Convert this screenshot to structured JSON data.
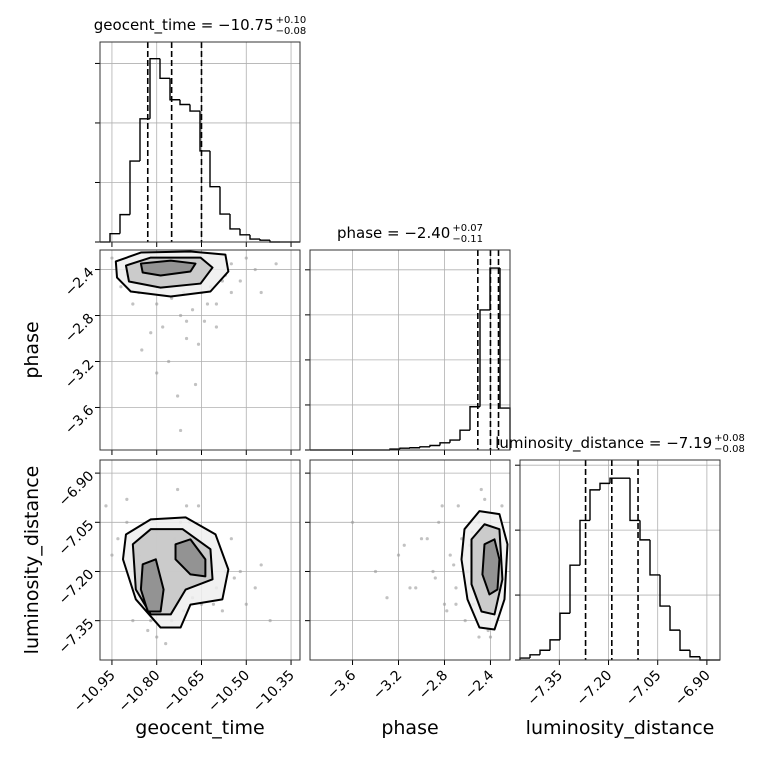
{
  "chart_data": [
    {
      "type": "histogram",
      "title": "geocent_time = −10.75",
      "title_upper": "+0.10",
      "title_lower": "−0.08",
      "color": "#000000",
      "grid": true,
      "bins": [
        -10.99,
        -10.9565,
        -10.923,
        -10.8895,
        -10.856,
        -10.8225,
        -10.789,
        -10.7555,
        -10.722,
        -10.6885,
        -10.655,
        -10.6215,
        -10.588,
        -10.5545,
        -10.521,
        -10.4875,
        -10.454,
        -10.4205,
        -10.387,
        -10.3535,
        -10.32
      ],
      "counts": [
        0,
        0.14,
        0.46,
        1.36,
        2.07,
        3.08,
        2.75,
        2.39,
        2.31,
        2.2,
        1.53,
        0.93,
        0.47,
        0.22,
        0.12,
        0.05,
        0.03,
        0,
        0,
        0
      ],
      "quantiles": [
        -10.83,
        -10.75,
        -10.65
      ],
      "xlim": [
        -10.99,
        -10.32
      ],
      "xticks": [
        -10.95,
        -10.8,
        -10.65,
        -10.5,
        -10.35
      ],
      "ylim": [
        0,
        3.36
      ],
      "yticks": [
        0,
        1,
        2,
        3
      ]
    },
    {
      "type": "scatter",
      "ylabel": "phase",
      "grid": true,
      "color": "#999999",
      "x": [
        -10.95,
        -10.9,
        -10.86,
        -10.83,
        -10.8,
        -10.78,
        -10.75,
        -10.72,
        -10.7,
        -10.68,
        -10.65,
        -10.62,
        -10.6,
        -10.57,
        -10.55,
        -10.52,
        -10.5,
        -10.47,
        -10.45,
        -10.4,
        -10.85,
        -10.8,
        -10.76,
        -10.73,
        -10.7,
        -10.66,
        -10.63,
        -10.78,
        -10.72,
        -10.69,
        -10.88,
        -10.82,
        -10.74,
        -10.6,
        -10.55,
        -10.67,
        -10.71,
        -10.64,
        -10.58,
        -10.92
      ],
      "y": [
        -2.3,
        -2.45,
        -2.6,
        -2.5,
        -2.7,
        -2.9,
        -2.65,
        -2.8,
        -3.0,
        -2.75,
        -2.6,
        -2.55,
        -2.9,
        -2.45,
        -2.35,
        -2.5,
        -2.3,
        -2.4,
        -2.6,
        -2.35,
        -3.1,
        -3.3,
        -3.2,
        -3.5,
        -2.85,
        -3.05,
        -2.7,
        -2.55,
        -3.8,
        -2.5,
        -2.7,
        -2.95,
        -2.4,
        -2.7,
        -2.6,
        -3.4,
        -2.6,
        -2.85,
        -2.5,
        -2.55
      ],
      "contours": [
        {
          "x": [
            -10.937,
            -10.853,
            -10.687,
            -10.57,
            -10.56,
            -10.62,
            -10.753,
            -10.887,
            -10.933
          ],
          "y": [
            -2.33,
            -2.252,
            -2.243,
            -2.27,
            -2.417,
            -2.591,
            -2.635,
            -2.591,
            -2.47
          ]
        },
        {
          "x": [
            -10.903,
            -10.82,
            -10.653,
            -10.613,
            -10.653,
            -10.787,
            -10.893
          ],
          "y": [
            -2.365,
            -2.296,
            -2.296,
            -2.383,
            -2.522,
            -2.557,
            -2.504
          ]
        },
        {
          "x": [
            -10.853,
            -10.753,
            -10.67,
            -10.687,
            -10.787,
            -10.847
          ],
          "y": [
            -2.348,
            -2.322,
            -2.348,
            -2.417,
            -2.452,
            -2.426
          ]
        }
      ],
      "xlim": [
        -10.99,
        -10.32
      ],
      "xticks": [
        -10.95,
        -10.8,
        -10.65,
        -10.5,
        -10.35
      ],
      "ylim": [
        -3.97,
        -2.23
      ],
      "yticks": [
        {
          "value": -2.4,
          "label": "−2.4"
        },
        {
          "value": -2.8,
          "label": "−2.8"
        },
        {
          "value": -3.2,
          "label": "−3.2"
        },
        {
          "value": -3.6,
          "label": "−3.6"
        }
      ]
    },
    {
      "type": "histogram",
      "title": "phase = −2.40",
      "title_upper": "+0.07",
      "title_lower": "−0.11",
      "color": "#000000",
      "grid": true,
      "bins": [
        -3.97,
        -3.883,
        -3.796,
        -3.709,
        -3.622,
        -3.535,
        -3.448,
        -3.361,
        -3.274,
        -3.187,
        -3.1,
        -3.013,
        -2.926,
        -2.839,
        -2.752,
        -2.665,
        -2.578,
        -2.491,
        -2.404,
        -2.317,
        -2.23
      ],
      "counts": [
        0,
        0,
        0,
        0,
        0,
        0,
        0,
        0,
        0.02,
        0.04,
        0.05,
        0.07,
        0.1,
        0.16,
        0.22,
        0.44,
        0.96,
        3.11,
        4.04,
        0.93
      ],
      "quantiles": [
        -2.51,
        -2.4,
        -2.33
      ],
      "xlim": [
        -3.97,
        -2.23
      ],
      "xticks": [
        -3.6,
        -3.2,
        -2.8,
        -2.4
      ],
      "ylim": [
        0,
        4.44
      ],
      "yticks": [
        0,
        1,
        2,
        3,
        4
      ]
    },
    {
      "type": "scatter",
      "xlabel": "geocent_time",
      "ylabel": "luminosity_distance",
      "grid": true,
      "color": "#999999",
      "x": [
        -10.97,
        -10.93,
        -10.9,
        -10.88,
        -10.85,
        -10.82,
        -10.8,
        -10.78,
        -10.75,
        -10.72,
        -10.7,
        -10.68,
        -10.65,
        -10.62,
        -10.6,
        -10.57,
        -10.55,
        -10.5,
        -10.47,
        -10.42,
        -10.9,
        -10.86,
        -10.83,
        -10.77,
        -10.74,
        -10.71,
        -10.66,
        -10.63,
        -10.58,
        -10.52,
        -10.95,
        -10.8,
        -10.76,
        -10.69,
        -10.61,
        -10.54,
        -10.45,
        -10.88,
        -10.73,
        -10.64
      ],
      "y": [
        -7.0,
        -7.1,
        -7.05,
        -7.25,
        -7.3,
        -7.35,
        -7.4,
        -7.2,
        -7.35,
        -7.05,
        -7.0,
        -7.28,
        -7.3,
        -7.15,
        -7.25,
        -7.2,
        -7.1,
        -7.3,
        -7.25,
        -7.35,
        -6.98,
        -7.15,
        -7.38,
        -7.42,
        -7.1,
        -7.32,
        -7.0,
        -7.2,
        -7.32,
        -7.2,
        -7.15,
        -7.08,
        -7.25,
        -7.05,
        -7.3,
        -7.22,
        -7.18,
        -7.35,
        -6.95,
        -7.12
      ],
      "contours": [
        {
          "x": [
            -10.903,
            -10.82,
            -10.703,
            -10.603,
            -10.56,
            -10.58,
            -10.687,
            -10.72,
            -10.787,
            -10.87,
            -10.913
          ],
          "y": [
            -7.087,
            -7.041,
            -7.035,
            -7.087,
            -7.194,
            -7.285,
            -7.301,
            -7.371,
            -7.371,
            -7.285,
            -7.163
          ]
        },
        {
          "x": [
            -10.88,
            -10.82,
            -10.713,
            -10.62,
            -10.613,
            -10.703,
            -10.753,
            -10.82,
            -10.87
          ],
          "y": [
            -7.117,
            -7.071,
            -7.071,
            -7.132,
            -7.224,
            -7.255,
            -7.331,
            -7.331,
            -7.255
          ]
        },
        {
          "x": [
            -10.847,
            -10.803,
            -10.777,
            -10.787,
            -10.83,
            -10.853
          ],
          "y": [
            -7.178,
            -7.163,
            -7.255,
            -7.322,
            -7.322,
            -7.255
          ]
        },
        {
          "x": [
            -10.737,
            -10.687,
            -10.637,
            -10.637,
            -10.687,
            -10.737
          ],
          "y": [
            -7.117,
            -7.102,
            -7.163,
            -7.215,
            -7.209,
            -7.163
          ]
        }
      ],
      "xlim": [
        -10.99,
        -10.32
      ],
      "xticks": [
        {
          "value": -10.95,
          "label": "−10.95"
        },
        {
          "value": -10.8,
          "label": "−10.80"
        },
        {
          "value": -10.65,
          "label": "−10.65"
        },
        {
          "value": -10.5,
          "label": "−10.50"
        },
        {
          "value": -10.35,
          "label": "−10.35"
        }
      ],
      "ylim": [
        -7.47,
        -6.86
      ],
      "yticks": [
        {
          "value": -6.9,
          "label": "−6.90"
        },
        {
          "value": -7.05,
          "label": "−7.05"
        },
        {
          "value": -7.2,
          "label": "−7.20"
        },
        {
          "value": -7.35,
          "label": "−7.35"
        }
      ]
    },
    {
      "type": "scatter",
      "xlabel": "phase",
      "grid": true,
      "color": "#999999",
      "x": [
        -2.3,
        -2.35,
        -2.4,
        -2.45,
        -2.5,
        -2.55,
        -2.6,
        -2.65,
        -2.7,
        -2.75,
        -2.8,
        -2.85,
        -2.9,
        -3.0,
        -3.1,
        -3.2,
        -3.4,
        -3.6,
        -2.42,
        -2.48,
        -2.52,
        -2.58,
        -2.62,
        -2.68,
        -2.72,
        -2.78,
        -2.95,
        -3.05,
        -2.38,
        -2.44,
        -2.5,
        -2.56,
        -2.64,
        -2.7,
        -2.82,
        -2.88,
        -3.15,
        -3.3,
        -2.33,
        -2.46
      ],
      "y": [
        -7.0,
        -7.35,
        -7.4,
        -6.98,
        -7.05,
        -7.3,
        -7.2,
        -7.1,
        -7.25,
        -7.15,
        -7.3,
        -7.05,
        -7.2,
        -7.1,
        -7.25,
        -7.15,
        -7.2,
        -7.05,
        -7.38,
        -6.95,
        -7.28,
        -7.12,
        -7.35,
        -7.0,
        -7.18,
        -7.32,
        -7.1,
        -7.25,
        -7.2,
        -7.22,
        -7.4,
        -7.08,
        -7.15,
        -7.3,
        -7.0,
        -7.22,
        -7.12,
        -7.28,
        -7.1,
        -7.15
      ],
      "contours": [
        {
          "x": [
            -2.626,
            -2.496,
            -2.322,
            -2.252,
            -2.278,
            -2.365,
            -2.496,
            -2.6,
            -2.652
          ],
          "y": [
            -7.071,
            -7.016,
            -7.025,
            -7.117,
            -7.285,
            -7.377,
            -7.371,
            -7.285,
            -7.163
          ]
        },
        {
          "x": [
            -2.565,
            -2.452,
            -2.322,
            -2.296,
            -2.365,
            -2.478,
            -2.565
          ],
          "y": [
            -7.102,
            -7.056,
            -7.071,
            -7.224,
            -7.331,
            -7.322,
            -7.239
          ]
        },
        {
          "x": [
            -2.452,
            -2.365,
            -2.322,
            -2.339,
            -2.409,
            -2.47
          ],
          "y": [
            -7.117,
            -7.102,
            -7.163,
            -7.255,
            -7.27,
            -7.209
          ]
        }
      ],
      "xlim": [
        -3.97,
        -2.23
      ],
      "xticks": [
        {
          "value": -3.6,
          "label": "−3.6"
        },
        {
          "value": -3.2,
          "label": "−3.2"
        },
        {
          "value": -2.8,
          "label": "−2.8"
        },
        {
          "value": -2.4,
          "label": "−2.4"
        }
      ],
      "ylim": [
        -7.47,
        -6.86
      ],
      "yticks": [
        -6.9,
        -7.05,
        -7.2,
        -7.35
      ]
    },
    {
      "type": "histogram",
      "xlabel": "luminosity_distance",
      "title": "luminosity_distance = −7.19",
      "title_upper": "+0.08",
      "title_lower": "−0.08",
      "color": "#000000",
      "grid": true,
      "bins": [
        -7.47,
        -7.4395,
        -7.409,
        -7.3785,
        -7.348,
        -7.3175,
        -7.287,
        -7.2565,
        -7.226,
        -7.1955,
        -7.165,
        -7.1345,
        -7.104,
        -7.0735,
        -7.043,
        -7.0125,
        -6.982,
        -6.9515,
        -6.921,
        -6.8905,
        -6.86
      ],
      "counts": [
        0.03,
        0.08,
        0.15,
        0.31,
        0.72,
        1.46,
        2.15,
        2.62,
        2.72,
        2.8,
        2.8,
        2.15,
        1.85,
        1.31,
        0.83,
        0.46,
        0.15,
        0.05,
        0,
        0
      ],
      "quantiles": [
        -7.27,
        -7.19,
        -7.11
      ],
      "xlim": [
        -7.47,
        -6.86
      ],
      "xticks": [
        {
          "value": -7.35,
          "label": "−7.35"
        },
        {
          "value": -7.2,
          "label": "−7.20"
        },
        {
          "value": -7.05,
          "label": "−7.05"
        },
        {
          "value": -6.9,
          "label": "−6.90"
        }
      ],
      "ylim": [
        0,
        3.08
      ],
      "yticks": [
        0,
        1,
        2,
        3
      ]
    }
  ]
}
